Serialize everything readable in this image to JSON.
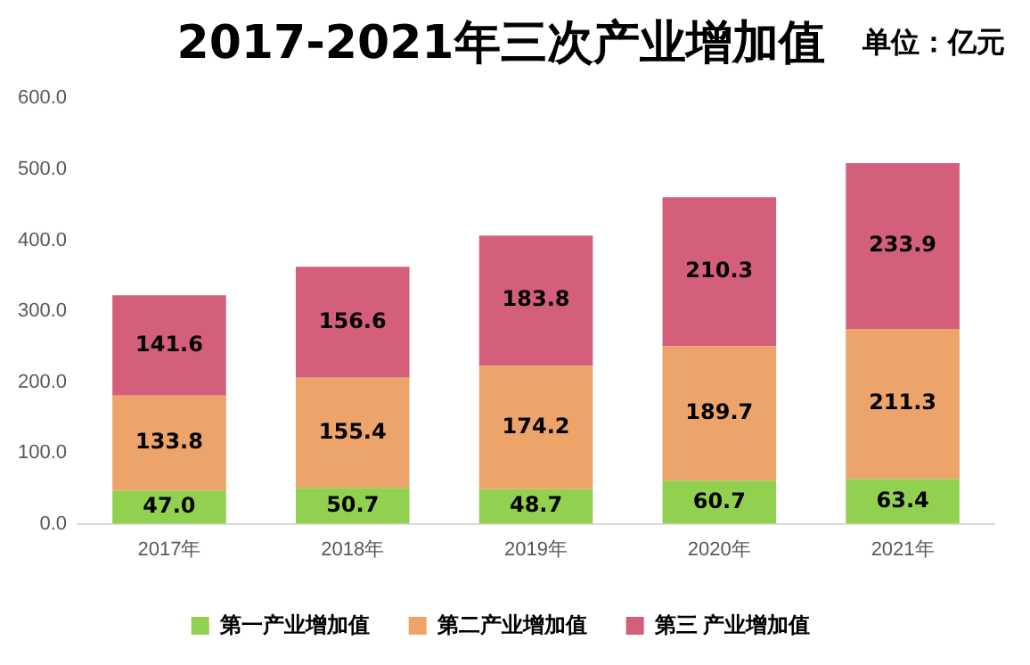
{
  "chart_data": {
    "type": "bar",
    "title": "2017-2021年三次产业增加值",
    "annotations": [
      "单位：亿元"
    ],
    "categories": [
      "2017年",
      "2018年",
      "2019年",
      "2020年",
      "2021年"
    ],
    "stacked": true,
    "legend": "bottom",
    "grid": false,
    "ylim": [
      0,
      600
    ],
    "yticks": [
      {
        "value": 0,
        "label": "0.0"
      },
      {
        "value": 100,
        "label": "100.0"
      },
      {
        "value": 200,
        "label": "200.0"
      },
      {
        "value": 300,
        "label": "300.0"
      },
      {
        "value": 400,
        "label": "400.0"
      },
      {
        "value": 500,
        "label": "500.0"
      },
      {
        "value": 600,
        "label": "600.0"
      }
    ],
    "series": [
      {
        "name": "第一产业增加值",
        "color": "#92d050",
        "values": [
          47.0,
          50.7,
          48.7,
          60.7,
          63.4
        ],
        "value_labels": [
          "47.0",
          "50.7",
          "48.7",
          "60.7",
          "63.4"
        ]
      },
      {
        "name": "第二产业增加值",
        "color": "#eda46a",
        "values": [
          133.8,
          155.4,
          174.2,
          189.7,
          211.3
        ],
        "value_labels": [
          "133.8",
          "155.4",
          "174.2",
          "189.7",
          "211.3"
        ]
      },
      {
        "name": "第三 产业增加值",
        "color": "#d45f7a",
        "values": [
          141.6,
          156.6,
          183.8,
          210.3,
          233.9
        ],
        "value_labels": [
          "141.6",
          "156.6",
          "183.8",
          "210.3",
          "233.9"
        ]
      }
    ]
  }
}
